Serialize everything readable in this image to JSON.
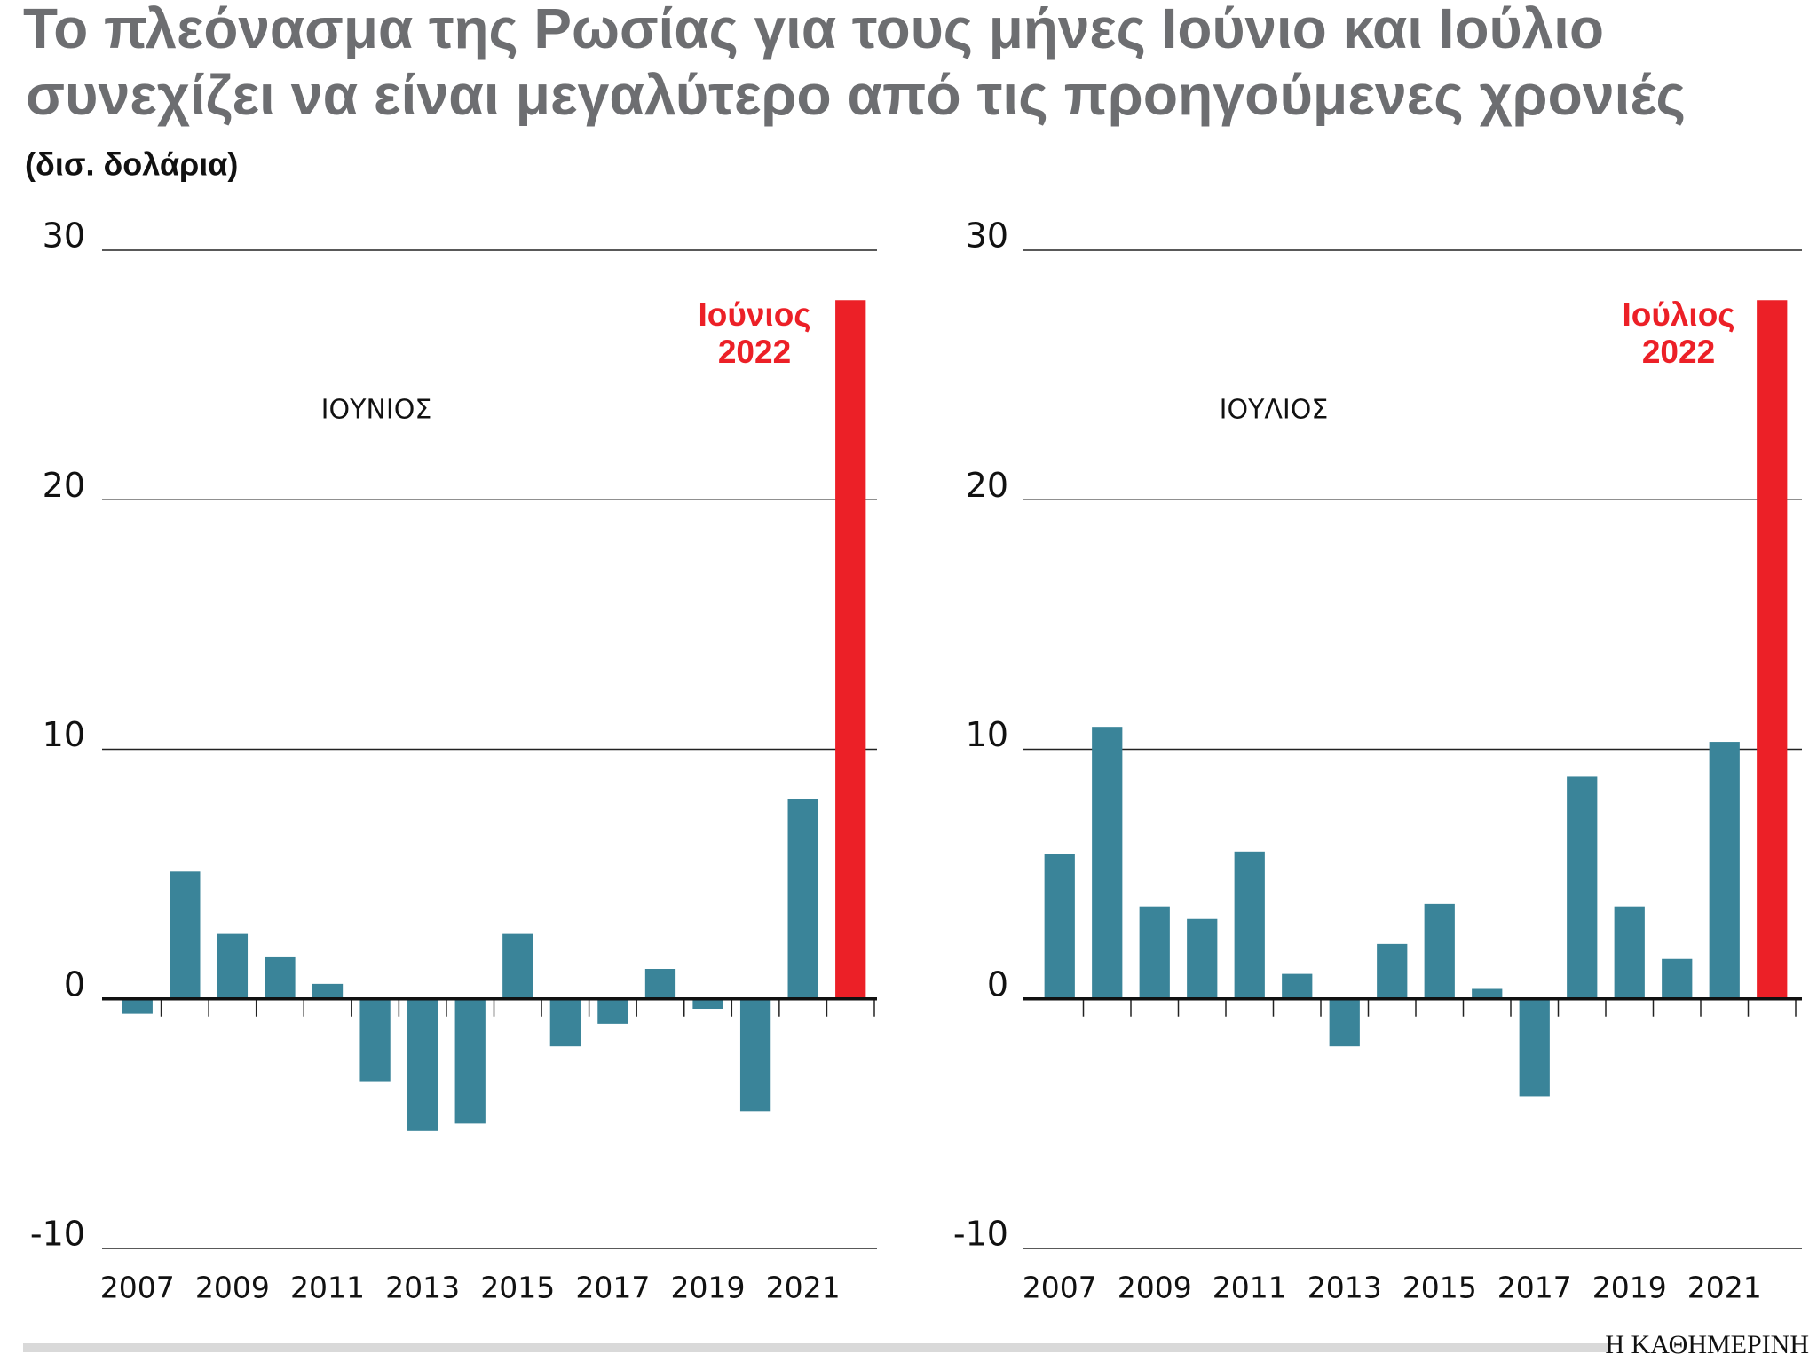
{
  "title": [
    "Το πλεόνασμα της Ρωσίας για τους μήνες Ιούνιο και Ιούλιο",
    "συνεχίζει να είναι μεγαλύτερο από τις προηγούμενες χρονιές"
  ],
  "subtitle": "(δισ. δολάρια)",
  "source": "Η ΚΑΘΗΜΕΡΙΝΗ",
  "chart_data": [
    {
      "type": "bar",
      "label": "ΙΟΥΝΙΟΣ",
      "annotation": [
        "Ιούνιος",
        "2022"
      ],
      "categories": [
        "2007",
        null,
        "2009",
        null,
        "2011",
        null,
        "2013",
        null,
        "2015",
        null,
        "2017",
        null,
        "2019",
        null,
        "2021",
        null
      ],
      "values": [
        -0.6,
        5.1,
        2.6,
        1.7,
        0.6,
        -3.3,
        -5.3,
        -5.0,
        2.6,
        -1.9,
        -1.0,
        1.2,
        -0.4,
        -4.5,
        8.0,
        28.0
      ],
      "colors": [
        "#3a8499",
        "#3a8499",
        "#3a8499",
        "#3a8499",
        "#3a8499",
        "#3a8499",
        "#3a8499",
        "#3a8499",
        "#3a8499",
        "#3a8499",
        "#3a8499",
        "#3a8499",
        "#3a8499",
        "#3a8499",
        "#3a8499",
        "#ec2027"
      ],
      "ylim": [
        -10,
        30
      ],
      "yticks": [
        -10,
        0,
        10,
        20,
        30
      ],
      "grid": true
    },
    {
      "type": "bar",
      "label": "ΙΟΥΛΙΟΣ",
      "annotation": [
        "Ιούλιος",
        "2022"
      ],
      "categories": [
        "2007",
        null,
        "2009",
        null,
        "2011",
        null,
        "2013",
        null,
        "2015",
        null,
        "2017",
        null,
        "2019",
        null,
        "2021",
        null
      ],
      "values": [
        5.8,
        10.9,
        3.7,
        3.2,
        5.9,
        1.0,
        -1.9,
        2.2,
        3.8,
        0.4,
        -3.9,
        8.9,
        3.7,
        1.6,
        10.3,
        28.0
      ],
      "colors": [
        "#3a8499",
        "#3a8499",
        "#3a8499",
        "#3a8499",
        "#3a8499",
        "#3a8499",
        "#3a8499",
        "#3a8499",
        "#3a8499",
        "#3a8499",
        "#3a8499",
        "#3a8499",
        "#3a8499",
        "#3a8499",
        "#3a8499",
        "#ec2027"
      ],
      "ylim": [
        -10,
        30
      ],
      "yticks": [
        -10,
        0,
        10,
        20,
        30
      ],
      "grid": true
    }
  ]
}
